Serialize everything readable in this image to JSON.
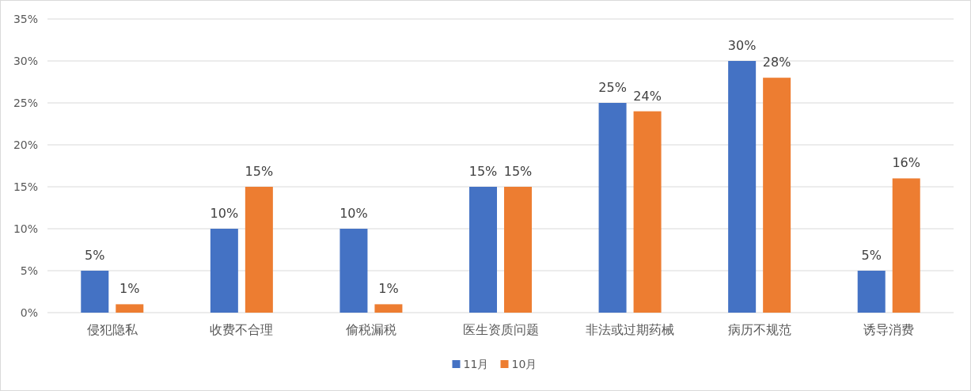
{
  "chart_data": {
    "type": "bar",
    "categories": [
      "侵犯隐私",
      "收费不合理",
      "偷税漏税",
      "医生资质问题",
      "非法或过期药械",
      "病历不规范",
      "诱导消费"
    ],
    "series": [
      {
        "name": "11月",
        "color": "#4472c4",
        "values": [
          5,
          10,
          10,
          15,
          25,
          30,
          5
        ],
        "value_labels": [
          "5%",
          "10%",
          "10%",
          "15%",
          "25%",
          "30%",
          "5%"
        ]
      },
      {
        "name": "10月",
        "color": "#ed7d31",
        "values": [
          1,
          15,
          1,
          15,
          24,
          28,
          16
        ],
        "value_labels": [
          "1%",
          "15%",
          "1%",
          "15%",
          "24%",
          "28%",
          "16%"
        ]
      }
    ],
    "ylim": [
      0,
      35
    ],
    "yticks": [
      {
        "value": 0,
        "label": "0%"
      },
      {
        "value": 5,
        "label": "5%"
      },
      {
        "value": 10,
        "label": "10%"
      },
      {
        "value": 15,
        "label": "15%"
      },
      {
        "value": 20,
        "label": "20%"
      },
      {
        "value": 25,
        "label": "25%"
      },
      {
        "value": 30,
        "label": "30%"
      },
      {
        "value": 35,
        "label": "35%"
      }
    ],
    "grid": "y",
    "legend": "bottom"
  }
}
